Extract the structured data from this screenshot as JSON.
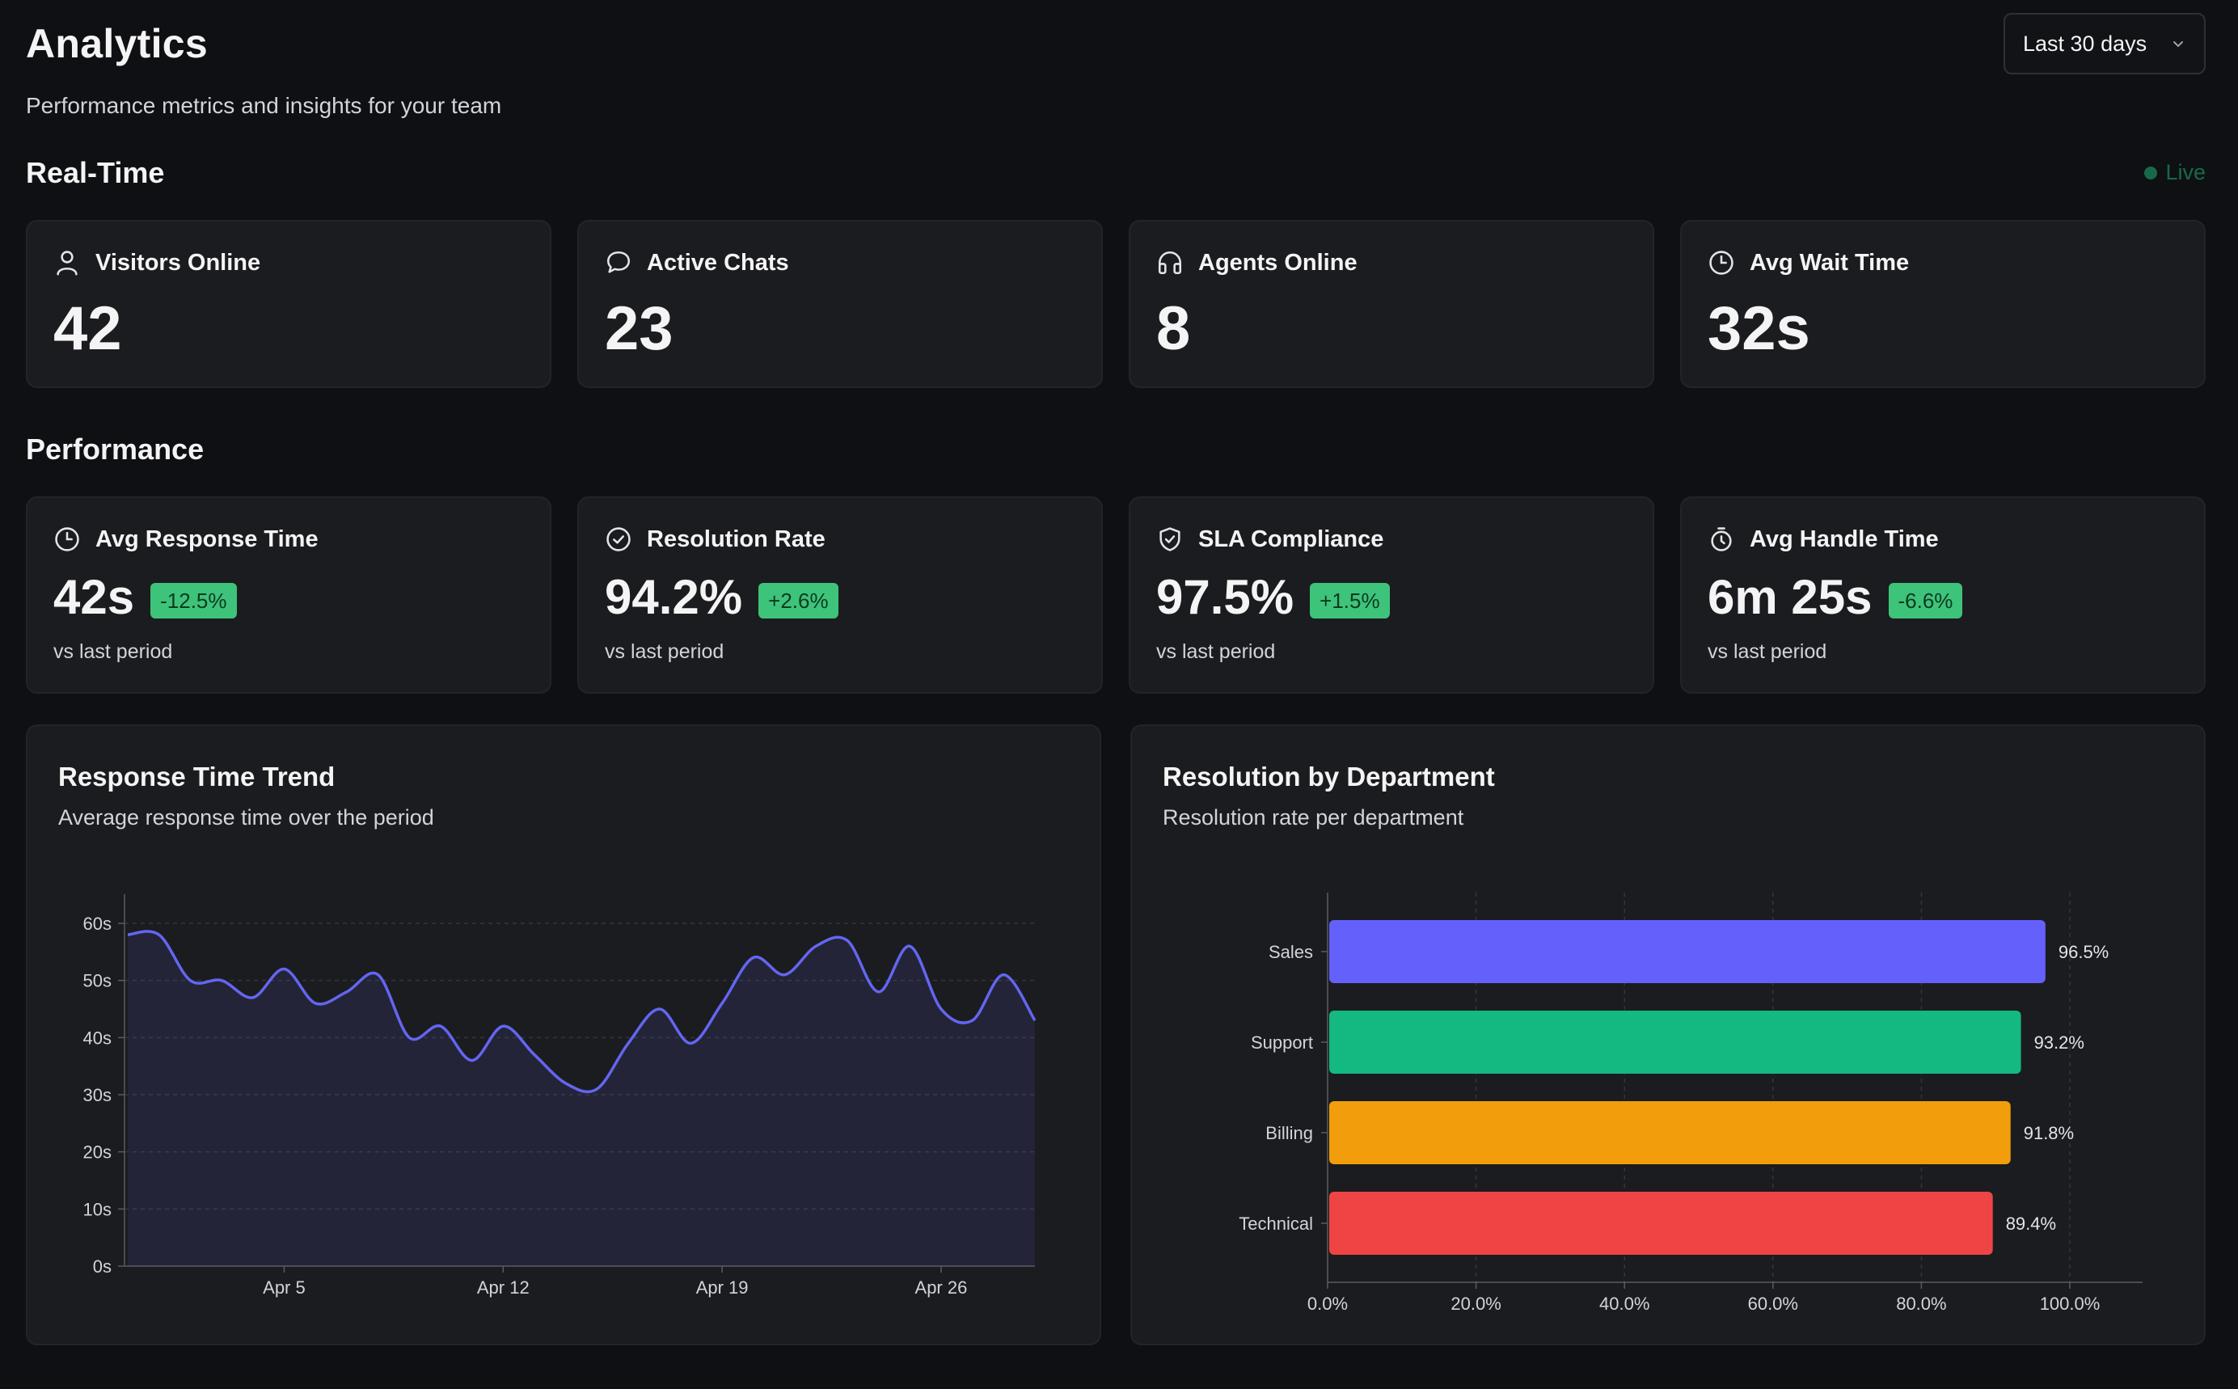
{
  "header": {
    "title": "Analytics",
    "subtitle": "Performance metrics and insights for your team",
    "range_select": "Last 30 days"
  },
  "realtime": {
    "title": "Real-Time",
    "live_label": "Live",
    "cards": [
      {
        "label": "Visitors Online",
        "value": "42",
        "icon": "user-icon"
      },
      {
        "label": "Active Chats",
        "value": "23",
        "icon": "chat-bubble-icon"
      },
      {
        "label": "Agents Online",
        "value": "8",
        "icon": "headphones-icon"
      },
      {
        "label": "Avg Wait Time",
        "value": "32s",
        "icon": "clock-icon"
      }
    ]
  },
  "performance": {
    "title": "Performance",
    "cards": [
      {
        "label": "Avg Response Time",
        "value": "42s",
        "delta": "-12.5%",
        "note": "vs last period",
        "icon": "clock-icon"
      },
      {
        "label": "Resolution Rate",
        "value": "94.2%",
        "delta": "+2.6%",
        "note": "vs last period",
        "icon": "check-circle-icon"
      },
      {
        "label": "SLA Compliance",
        "value": "97.5%",
        "delta": "+1.5%",
        "note": "vs last period",
        "icon": "shield-check-icon"
      },
      {
        "label": "Avg Handle Time",
        "value": "6m 25s",
        "delta": "-6.6%",
        "note": "vs last period",
        "icon": "stopwatch-icon"
      }
    ]
  },
  "colors": {
    "accent": "#6366f1",
    "success_badge": "#3ec37a",
    "live": "#176a49",
    "sales": "#6360fb",
    "support": "#14b982",
    "billing": "#f29e0c",
    "technical": "#ef4444"
  },
  "chart_data": [
    {
      "type": "area",
      "title": "Response Time Trend",
      "subtitle": "Average response time over the period",
      "x_ticks": [
        "Apr 5",
        "Apr 12",
        "Apr 19",
        "Apr 26"
      ],
      "y_ticks": [
        "0s",
        "10s",
        "20s",
        "30s",
        "40s",
        "50s",
        "60s"
      ],
      "ylim": [
        0,
        65
      ],
      "x": [
        "Mar 31",
        "Apr 1",
        "Apr 2",
        "Apr 3",
        "Apr 4",
        "Apr 5",
        "Apr 6",
        "Apr 7",
        "Apr 8",
        "Apr 9",
        "Apr 10",
        "Apr 11",
        "Apr 12",
        "Apr 13",
        "Apr 14",
        "Apr 15",
        "Apr 16",
        "Apr 17",
        "Apr 18",
        "Apr 19",
        "Apr 20",
        "Apr 21",
        "Apr 22",
        "Apr 23",
        "Apr 24",
        "Apr 25",
        "Apr 26",
        "Apr 27",
        "Apr 28",
        "Apr 29"
      ],
      "values": [
        58,
        58,
        50,
        50,
        47,
        52,
        46,
        48,
        51,
        40,
        42,
        36,
        42,
        37,
        32,
        31,
        39,
        45,
        39,
        46,
        54,
        51,
        56,
        57,
        48,
        56,
        45,
        43,
        51,
        43
      ],
      "grid": true
    },
    {
      "type": "bar",
      "orientation": "horizontal",
      "title": "Resolution by Department",
      "subtitle": "Resolution rate per department",
      "categories": [
        "Sales",
        "Support",
        "Billing",
        "Technical"
      ],
      "values": [
        96.5,
        93.2,
        91.8,
        89.4
      ],
      "value_labels": [
        "96.5%",
        "93.2%",
        "91.8%",
        "89.4%"
      ],
      "x_ticks": [
        "0.0%",
        "20.0%",
        "40.0%",
        "60.0%",
        "80.0%",
        "100.0%"
      ],
      "xlim": [
        0,
        100
      ],
      "grid": true
    }
  ]
}
